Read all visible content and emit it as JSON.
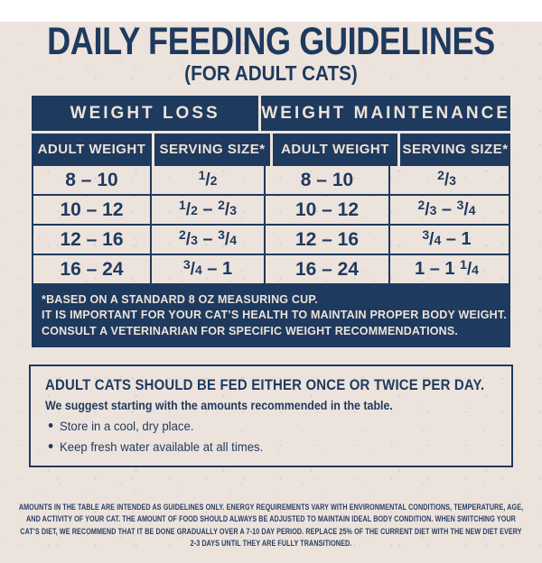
{
  "page": {
    "title": "DAILY FEEDING GUIDELINES",
    "subtitle": "(FOR ADULT CATS)"
  },
  "colors": {
    "navy": "#1e3a5e",
    "cream": "#ece2d8",
    "background": "#ede3dd"
  },
  "table": {
    "groups": [
      {
        "label": "WEIGHT LOSS"
      },
      {
        "label": "WEIGHT MAINTENANCE"
      }
    ],
    "columns": [
      "ADULT WEIGHT",
      "SERVING SIZE*",
      "ADULT WEIGHT",
      "SERVING SIZE*"
    ],
    "rows": [
      [
        "8 – 10",
        "1/2",
        "8 – 10",
        "2/3"
      ],
      [
        "10 – 12",
        "1/2 – 2/3",
        "10 – 12",
        "2/3 – 3/4"
      ],
      [
        "12 – 16",
        "2/3 – 3/4",
        "12 – 16",
        "3/4 – 1"
      ],
      [
        "16 – 24",
        "3/4 – 1",
        "16 – 24",
        "1 – 1 1/4"
      ]
    ],
    "footnote_lines": [
      "*BASED ON A STANDARD 8 OZ MEASURING CUP.",
      "IT IS IMPORTANT FOR YOUR CAT’S HEALTH TO MAINTAIN PROPER BODY WEIGHT.",
      "CONSULT A VETERINARIAN FOR SPECIFIC WEIGHT RECOMMENDATIONS."
    ]
  },
  "info_box": {
    "heading": "ADULT CATS SHOULD BE FED EITHER ONCE OR TWICE PER DAY.",
    "subheading": "We suggest starting with the amounts recommended in the table.",
    "bullets": [
      "Store in a cool, dry place.",
      "Keep fresh water available at all times."
    ]
  },
  "disclaimer": "AMOUNTS IN THE TABLE ARE INTENDED AS GUIDELINES ONLY. ENERGY REQUIREMENTS VARY WITH ENVIRONMENTAL CONDITIONS, TEMPERATURE, AGE, AND ACTIVITY OF YOUR CAT. THE AMOUNT OF FOOD SHOULD ALWAYS BE ADJUSTED TO MAINTAIN IDEAL BODY CONDITION. WHEN SWITCHING YOUR CAT’S DIET, WE RECOMMEND THAT IT BE DONE GRADUALLY OVER A 7-10 DAY PERIOD. REPLACE 25% OF THE CURRENT DIET WITH THE NEW DIET EVERY 2-3 DAYS UNTIL THEY ARE FULLY TRANSITIONED."
}
